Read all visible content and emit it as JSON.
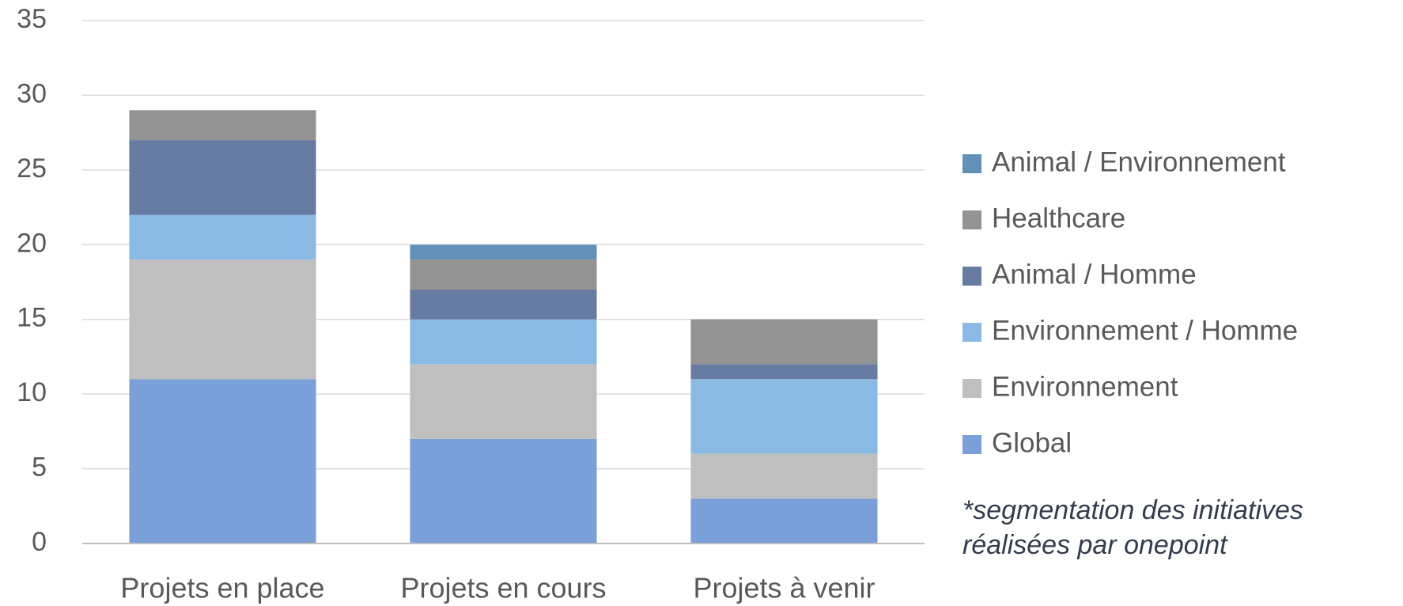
{
  "chart_data": {
    "type": "stacked_bar",
    "categories": [
      "Projets en place",
      "Projets en cours",
      "Projets à venir"
    ],
    "series": [
      {
        "name": "Global",
        "color": "#7b9fd8",
        "values": [
          11,
          7,
          3
        ]
      },
      {
        "name": "Environnement",
        "color": "#bfbfbf",
        "values": [
          8,
          5,
          3
        ]
      },
      {
        "name": "Environnement / Homme",
        "color": "#8ab9e3",
        "values": [
          3,
          3,
          5
        ]
      },
      {
        "name": "Animal / Homme",
        "color": "#687ba3",
        "values": [
          5,
          2,
          1
        ]
      },
      {
        "name": "Healthcare",
        "color": "#939393",
        "values": [
          2,
          2,
          3
        ]
      },
      {
        "name": "Animal / Environnement",
        "color": "#6390b9",
        "values": [
          0,
          1,
          0
        ]
      }
    ],
    "ylim": [
      0,
      35
    ],
    "yticks": [
      0,
      5,
      10,
      15,
      20,
      25,
      30,
      35
    ],
    "grid": true,
    "legend": "right",
    "annotation": [
      "*segmentation des initiatives",
      "réalisées par onepoint"
    ]
  }
}
